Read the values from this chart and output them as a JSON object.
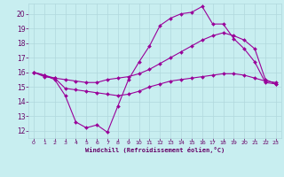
{
  "background_color": "#c8eef0",
  "grid_color": "#b0d8dc",
  "line_color": "#990099",
  "marker_color": "#990099",
  "xlabel": "Windchill (Refroidissement éolien,°C)",
  "xlabel_color": "#660066",
  "tick_color": "#660066",
  "xlim": [
    -0.5,
    23.5
  ],
  "ylim": [
    11.5,
    20.7
  ],
  "yticks": [
    12,
    13,
    14,
    15,
    16,
    17,
    18,
    19,
    20
  ],
  "xticks": [
    0,
    1,
    2,
    3,
    4,
    5,
    6,
    7,
    8,
    9,
    10,
    11,
    12,
    13,
    14,
    15,
    16,
    17,
    18,
    19,
    20,
    21,
    22,
    23
  ],
  "series1_x": [
    0,
    1,
    2,
    3,
    4,
    5,
    6,
    7,
    8,
    9,
    10,
    11,
    12,
    13,
    14,
    15,
    16,
    17,
    18,
    19,
    20,
    21,
    22,
    23
  ],
  "series1_y": [
    16.0,
    15.8,
    15.5,
    14.4,
    12.6,
    12.2,
    12.4,
    11.9,
    13.7,
    15.5,
    16.7,
    17.8,
    19.2,
    19.7,
    20.0,
    20.1,
    20.5,
    19.3,
    19.3,
    18.3,
    17.6,
    16.7,
    15.3,
    15.2
  ],
  "series2_x": [
    0,
    1,
    2,
    3,
    4,
    5,
    6,
    7,
    8,
    9,
    10,
    11,
    12,
    13,
    14,
    15,
    16,
    17,
    18,
    19,
    20,
    21,
    22,
    23
  ],
  "series2_y": [
    16.0,
    15.7,
    15.6,
    15.5,
    15.4,
    15.3,
    15.3,
    15.5,
    15.6,
    15.7,
    15.9,
    16.2,
    16.6,
    17.0,
    17.4,
    17.8,
    18.2,
    18.5,
    18.7,
    18.5,
    18.2,
    17.6,
    15.5,
    15.2
  ],
  "series3_x": [
    0,
    1,
    2,
    3,
    4,
    5,
    6,
    7,
    8,
    9,
    10,
    11,
    12,
    13,
    14,
    15,
    16,
    17,
    18,
    19,
    20,
    21,
    22,
    23
  ],
  "series3_y": [
    16.0,
    15.8,
    15.6,
    14.9,
    14.8,
    14.7,
    14.6,
    14.5,
    14.4,
    14.5,
    14.7,
    15.0,
    15.2,
    15.4,
    15.5,
    15.6,
    15.7,
    15.8,
    15.9,
    15.9,
    15.8,
    15.6,
    15.4,
    15.3
  ]
}
